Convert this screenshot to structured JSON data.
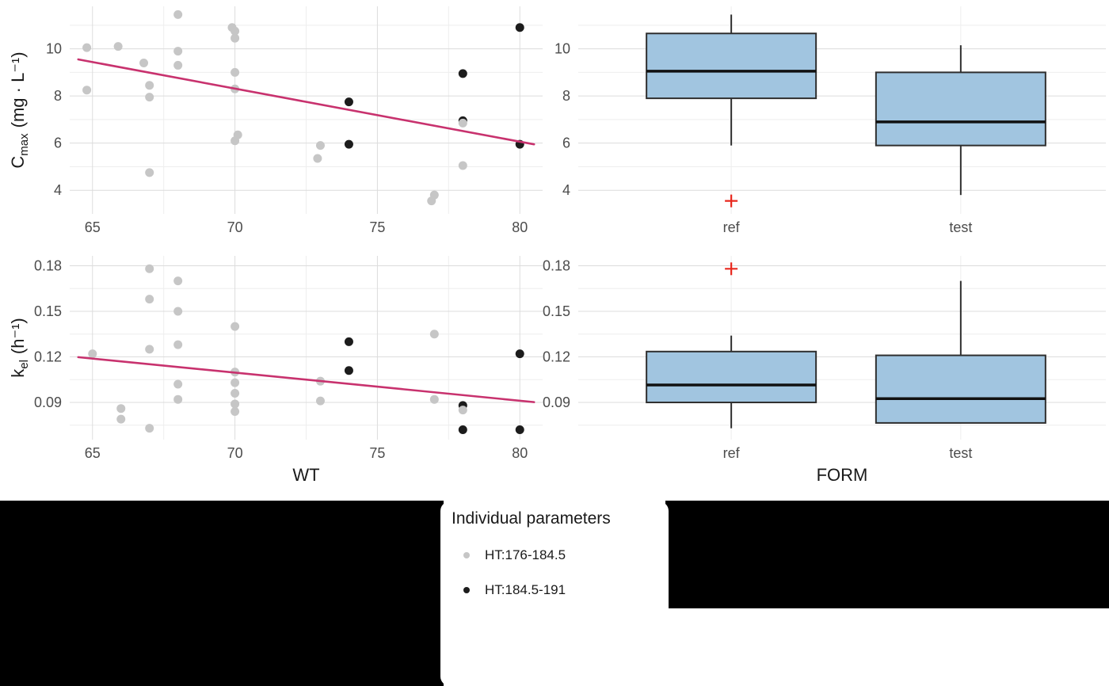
{
  "figure": {
    "colors": {
      "point_gray": "#c6c6c6",
      "point_black": "#1c1c1c",
      "trend_line": "#c8326e",
      "box_fill": "#a1c5e0",
      "box_border": "#2f2f2f",
      "median": "#111111",
      "outlier": "#e8281e",
      "grid_major": "#dcdcdc",
      "grid_minor": "#eeeeee",
      "redaction": "#000000"
    },
    "legend": {
      "title": "Individual parameters",
      "items": [
        {
          "label": "HT:176-184.5",
          "color": "#c6c6c6"
        },
        {
          "label": "HT:184.5-191",
          "color": "#1c1c1c"
        }
      ]
    }
  },
  "chart_data": [
    {
      "id": "cmax_vs_wt",
      "type": "scatter",
      "title": "",
      "xlabel": "",
      "ylabel": "Cmax (mg · L⁻¹)",
      "ylabel_parts": {
        "symbol": "C",
        "subscript": "max",
        "unit": "(mg · L⁻¹)"
      },
      "xlim": [
        64.2,
        80.8
      ],
      "ylim": [
        3.0,
        11.8
      ],
      "xticks": [
        65,
        70,
        75,
        80
      ],
      "xtick_labels": [
        "65",
        "70",
        "75",
        "80"
      ],
      "yticks": [
        4,
        6,
        8,
        10
      ],
      "ytick_labels": [
        "4",
        "6",
        "8",
        "10"
      ],
      "grid": true,
      "series": [
        {
          "name": "HT:176-184.5",
          "color_key": "point_gray",
          "points": [
            [
              64.8,
              10.05
            ],
            [
              64.8,
              8.25
            ],
            [
              65.9,
              10.1
            ],
            [
              66.8,
              9.4
            ],
            [
              67,
              8.45
            ],
            [
              67,
              7.95
            ],
            [
              67,
              4.75
            ],
            [
              68,
              11.45
            ],
            [
              68,
              9.9
            ],
            [
              68,
              9.3
            ],
            [
              69.9,
              10.9
            ],
            [
              70,
              10.75
            ],
            [
              70,
              10.45
            ],
            [
              70,
              9.0
            ],
            [
              70,
              8.3
            ],
            [
              70.1,
              6.35
            ],
            [
              70,
              6.1
            ],
            [
              73,
              5.9
            ],
            [
              72.9,
              5.35
            ],
            [
              77,
              3.8
            ],
            [
              76.9,
              3.55
            ],
            [
              78,
              6.85
            ],
            [
              78,
              5.05
            ]
          ]
        },
        {
          "name": "HT:184.5-191",
          "color_key": "point_black",
          "points": [
            [
              74,
              7.75
            ],
            [
              74,
              5.95
            ],
            [
              78,
              8.95
            ],
            [
              78,
              6.95
            ],
            [
              80,
              10.9
            ],
            [
              80,
              5.95
            ]
          ]
        }
      ],
      "trend": {
        "x1": 64.5,
        "y1": 9.55,
        "x2": 80.5,
        "y2": 5.95
      }
    },
    {
      "id": "cmax_by_form",
      "type": "box",
      "title": "",
      "xlabel": "",
      "ylim": [
        3.0,
        11.8
      ],
      "yticks": [
        4,
        6,
        8,
        10
      ],
      "ytick_labels": [
        "4",
        "6",
        "8",
        "10"
      ],
      "categories": [
        "ref",
        "test"
      ],
      "boxes": [
        {
          "category": "ref",
          "whisker_low": 5.9,
          "q1": 7.9,
          "median": 9.05,
          "q3": 10.65,
          "whisker_high": 11.45,
          "outliers": [
            3.55
          ]
        },
        {
          "category": "test",
          "whisker_low": 3.8,
          "q1": 5.9,
          "median": 6.9,
          "q3": 9.0,
          "whisker_high": 10.15,
          "outliers": []
        }
      ]
    },
    {
      "id": "kel_vs_wt",
      "type": "scatter",
      "title": "",
      "xlabel": "WT",
      "ylabel": "kel (h⁻¹)",
      "ylabel_parts": {
        "symbol": "k",
        "subscript": "el",
        "unit": "(h⁻¹)"
      },
      "xlim": [
        64.2,
        80.8
      ],
      "ylim": [
        0.0655,
        0.1865
      ],
      "xticks": [
        65,
        70,
        75,
        80
      ],
      "xtick_labels": [
        "65",
        "70",
        "75",
        "80"
      ],
      "yticks": [
        0.09,
        0.12,
        0.15,
        0.18
      ],
      "ytick_labels": [
        "0.09",
        "0.12",
        "0.15",
        "0.18"
      ],
      "grid": true,
      "series": [
        {
          "name": "HT:176-184.5",
          "color_key": "point_gray",
          "points": [
            [
              65,
              0.122
            ],
            [
              66,
              0.086
            ],
            [
              66,
              0.079
            ],
            [
              67,
              0.178
            ],
            [
              67,
              0.158
            ],
            [
              67,
              0.125
            ],
            [
              67,
              0.073
            ],
            [
              68,
              0.17
            ],
            [
              68,
              0.15
            ],
            [
              68,
              0.128
            ],
            [
              68,
              0.102
            ],
            [
              68,
              0.092
            ],
            [
              70,
              0.14
            ],
            [
              70,
              0.11
            ],
            [
              70,
              0.103
            ],
            [
              70,
              0.096
            ],
            [
              70,
              0.089
            ],
            [
              70,
              0.084
            ],
            [
              73,
              0.104
            ],
            [
              73,
              0.091
            ],
            [
              77,
              0.135
            ],
            [
              77,
              0.092
            ],
            [
              78,
              0.085
            ]
          ]
        },
        {
          "name": "HT:184.5-191",
          "color_key": "point_black",
          "points": [
            [
              74,
              0.13
            ],
            [
              74,
              0.111
            ],
            [
              78,
              0.088
            ],
            [
              78,
              0.072
            ],
            [
              80,
              0.122
            ],
            [
              80,
              0.072
            ]
          ]
        }
      ],
      "trend": {
        "x1": 64.5,
        "y1": 0.1198,
        "x2": 80.5,
        "y2": 0.0902
      }
    },
    {
      "id": "kel_by_form",
      "type": "box",
      "title": "",
      "xlabel": "FORM",
      "ylim": [
        0.0655,
        0.1865
      ],
      "yticks": [
        0.09,
        0.12,
        0.15,
        0.18
      ],
      "ytick_labels": [
        "0.09",
        "0.12",
        "0.15",
        "0.18"
      ],
      "categories": [
        "ref",
        "test"
      ],
      "boxes": [
        {
          "category": "ref",
          "whisker_low": 0.073,
          "q1": 0.09,
          "median": 0.1015,
          "q3": 0.1235,
          "whisker_high": 0.134,
          "outliers": [
            0.178
          ]
        },
        {
          "category": "test",
          "whisker_low": 0.0765,
          "q1": 0.0765,
          "median": 0.0925,
          "q3": 0.121,
          "whisker_high": 0.17,
          "outliers": []
        }
      ]
    }
  ]
}
